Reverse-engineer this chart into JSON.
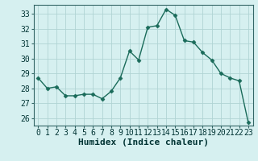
{
  "x": [
    0,
    1,
    2,
    3,
    4,
    5,
    6,
    7,
    8,
    9,
    10,
    11,
    12,
    13,
    14,
    15,
    16,
    17,
    18,
    19,
    20,
    21,
    22,
    23
  ],
  "y": [
    28.7,
    28.0,
    28.1,
    27.5,
    27.5,
    27.6,
    27.6,
    27.3,
    27.8,
    28.7,
    30.5,
    29.9,
    32.1,
    32.2,
    33.3,
    32.9,
    31.2,
    31.1,
    30.4,
    29.9,
    29.0,
    28.7,
    28.5,
    25.7
  ],
  "line_color": "#1a6b5a",
  "marker": "D",
  "marker_size": 2.5,
  "xlabel": "Humidex (Indice chaleur)",
  "xlabel_fontsize": 8,
  "ylim": [
    25.5,
    33.6
  ],
  "yticks": [
    26,
    27,
    28,
    29,
    30,
    31,
    32,
    33
  ],
  "xticks": [
    0,
    1,
    2,
    3,
    4,
    5,
    6,
    7,
    8,
    9,
    10,
    11,
    12,
    13,
    14,
    15,
    16,
    17,
    18,
    19,
    20,
    21,
    22,
    23
  ],
  "background_color": "#d6f0f0",
  "grid_color": "#b0d4d4",
  "tick_fontsize": 7,
  "line_width": 1.0
}
